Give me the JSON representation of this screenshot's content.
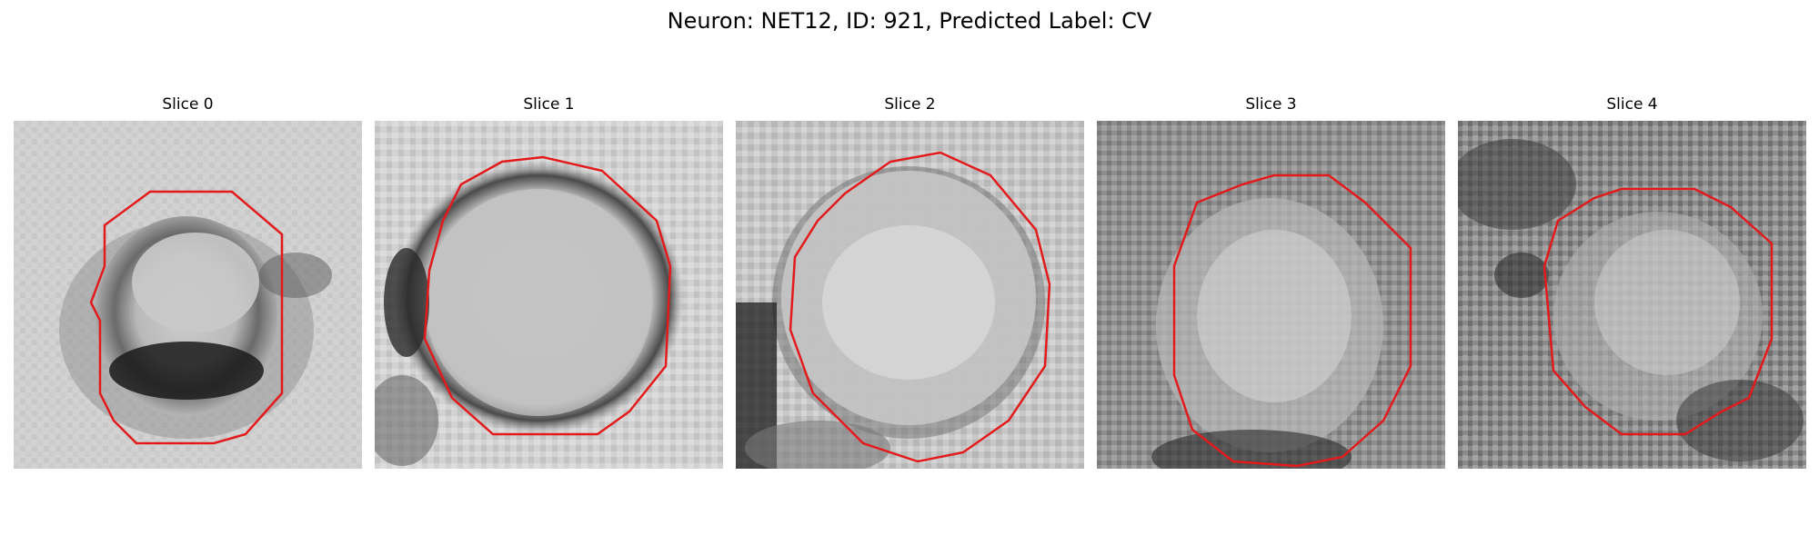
{
  "figure": {
    "title": "Neuron: NET12, ID: 921, Predicted Label: CV"
  },
  "panels": [
    {
      "title": "Slice 0"
    },
    {
      "title": "Slice 1"
    },
    {
      "title": "Slice 2"
    },
    {
      "title": "Slice 3"
    },
    {
      "title": "Slice 4"
    }
  ],
  "colors": {
    "contour": "#e31a1c",
    "background": "#ffffff"
  }
}
